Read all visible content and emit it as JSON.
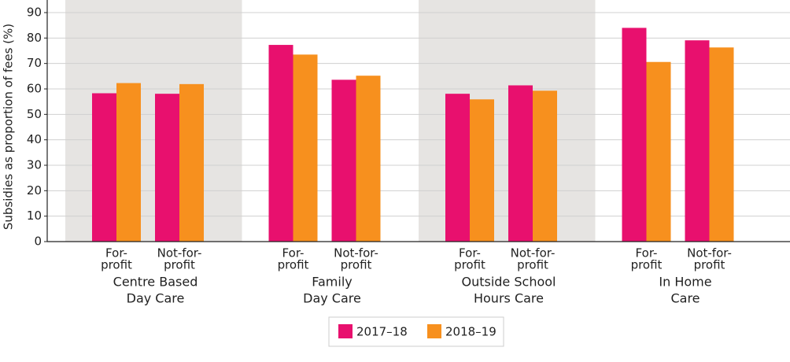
{
  "chart_data": {
    "type": "bar",
    "y_label": "Subsidies as proportion of fees (%)",
    "groups": [
      {
        "label": [
          "Centre Based",
          "Day Care"
        ],
        "shaded": true
      },
      {
        "label": [
          "Family",
          "Day Care"
        ],
        "shaded": false
      },
      {
        "label": [
          "Outside School",
          "Hours Care"
        ],
        "shaded": true
      },
      {
        "label": [
          "In Home",
          "Care"
        ],
        "shaded": false
      }
    ],
    "categories": [
      [
        "For-",
        "profit"
      ],
      [
        "Not-for-",
        "profit"
      ],
      [
        "For-",
        "profit"
      ],
      [
        "Not-for-",
        "profit"
      ],
      [
        "For-",
        "profit"
      ],
      [
        "Not-for-",
        "profit"
      ],
      [
        "For-",
        "profit"
      ],
      [
        "Not-for-",
        "profit"
      ]
    ],
    "series": [
      {
        "name": "2017–18",
        "color": "#e8106e",
        "values": [
          58.3,
          58.1,
          77.3,
          63.6,
          58.1,
          61.4,
          84.0,
          79.1
        ]
      },
      {
        "name": "2018–19",
        "color": "#f7901e",
        "values": [
          62.3,
          61.9,
          73.5,
          65.2,
          55.9,
          59.3,
          70.6,
          76.3
        ]
      }
    ],
    "ylim": [
      0,
      90
    ],
    "yticks": [
      0,
      10,
      20,
      30,
      40,
      50,
      60,
      70,
      80,
      90
    ],
    "grid": true,
    "legend": "bottom"
  }
}
